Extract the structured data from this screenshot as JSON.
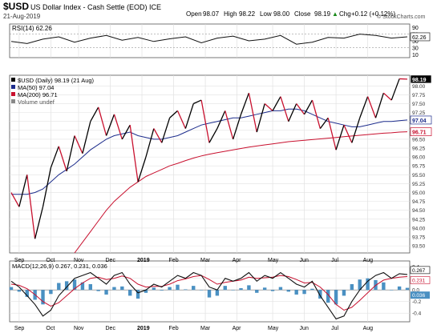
{
  "header": {
    "symbol": "$USD",
    "name": "US Dollar Index - Cash Settle (EOD) ICE",
    "date": "21-Aug-2019",
    "watermark": "© StockCharts.com",
    "quote": {
      "open_label": "Open",
      "open": "98.07",
      "high_label": "High",
      "high": "98.22",
      "low_label": "Low",
      "low": "98.00",
      "close_label": "Close",
      "close": "98.19",
      "chg_label": "Chg",
      "chg": "+0.12 (+0.12%)",
      "up_glyph": "▲"
    }
  },
  "chart_data": [
    {
      "type": "line",
      "panel": "RSI",
      "legend": "RSI(14) 62.26",
      "last_label": "62.26",
      "ylim": [
        0,
        100
      ],
      "y_ticks": [
        90,
        70,
        50,
        30,
        10
      ],
      "y_tick_labels": [
        "90",
        "70",
        "50",
        "30",
        "10"
      ],
      "x_index": [
        0,
        4,
        8,
        12,
        16,
        20,
        24,
        28,
        32,
        36,
        40,
        44,
        48,
        52,
        56,
        60,
        64,
        68,
        72,
        76,
        80,
        84,
        88,
        92,
        96,
        100
      ],
      "values": [
        48,
        42,
        55,
        62,
        46,
        58,
        66,
        52,
        60,
        48,
        56,
        62,
        44,
        58,
        64,
        50,
        55,
        66,
        40,
        46,
        60,
        58,
        70,
        66,
        58,
        62
      ]
    },
    {
      "type": "line",
      "panel": "price",
      "ylim": [
        93.3,
        98.3
      ],
      "y_ticks": [
        93.5,
        93.75,
        94.0,
        94.25,
        94.5,
        94.75,
        95.0,
        95.25,
        95.5,
        95.75,
        96.0,
        96.25,
        96.5,
        96.75,
        97.0,
        97.25,
        97.5,
        97.75,
        98.0
      ],
      "y_tick_labels": [
        "93.50",
        "93.75",
        "94.00",
        "94.25",
        "94.50",
        "94.75",
        "95.00",
        "95.25",
        "95.50",
        "95.75",
        "96.00",
        "96.25",
        "96.50",
        "96.75",
        "97.00",
        "97.25",
        "97.50",
        "97.75",
        "98.00"
      ],
      "legend": [
        {
          "label": "$USD (Daily) 98.19 (21 Aug)",
          "color": "#000000"
        },
        {
          "label": "MA(50) 97.04",
          "color": "#1c2c8c"
        },
        {
          "label": "MA(200) 96.71",
          "color": "#c8102e"
        },
        {
          "label": "Volume undef",
          "color": "#888888"
        }
      ],
      "last_labels": {
        "close": "98.19",
        "ma50": "97.04",
        "ma200": "96.71"
      },
      "x_index": [
        0,
        2,
        4,
        6,
        8,
        10,
        12,
        14,
        16,
        18,
        20,
        22,
        24,
        26,
        28,
        30,
        32,
        34,
        36,
        38,
        40,
        42,
        44,
        46,
        48,
        50,
        52,
        54,
        56,
        58,
        60,
        62,
        64,
        66,
        68,
        70,
        72,
        74,
        76,
        78,
        80,
        82,
        84,
        86,
        88,
        90,
        92,
        94,
        96,
        98,
        100
      ],
      "close": [
        95.0,
        94.6,
        95.5,
        93.7,
        94.6,
        95.7,
        96.3,
        95.6,
        96.6,
        96.1,
        97.0,
        97.4,
        96.6,
        97.2,
        96.5,
        96.9,
        95.3,
        96.0,
        96.8,
        96.4,
        97.1,
        97.3,
        96.8,
        97.5,
        97.6,
        96.4,
        96.8,
        97.3,
        96.5,
        97.2,
        97.8,
        96.7,
        97.5,
        97.3,
        97.7,
        97.0,
        97.5,
        97.2,
        97.6,
        96.8,
        97.1,
        96.2,
        96.9,
        96.4,
        97.1,
        97.7,
        97.1,
        97.8,
        97.6,
        98.2,
        98.19
      ],
      "ma50": [
        94.95,
        94.95,
        94.95,
        95.0,
        95.1,
        95.3,
        95.5,
        95.65,
        95.8,
        96.0,
        96.2,
        96.35,
        96.5,
        96.6,
        96.65,
        96.7,
        96.6,
        96.55,
        96.5,
        96.5,
        96.55,
        96.6,
        96.7,
        96.8,
        96.9,
        96.95,
        97.0,
        97.05,
        97.1,
        97.1,
        97.15,
        97.2,
        97.25,
        97.3,
        97.3,
        97.35,
        97.35,
        97.3,
        97.2,
        97.1,
        97.0,
        96.95,
        96.9,
        96.85,
        96.85,
        96.9,
        96.95,
        97.0,
        97.0,
        97.02,
        97.04
      ],
      "ma200": [
        null,
        null,
        null,
        null,
        null,
        null,
        null,
        null,
        93.3,
        93.6,
        93.9,
        94.2,
        94.5,
        94.75,
        94.95,
        95.15,
        95.3,
        95.45,
        95.55,
        95.65,
        95.75,
        95.82,
        95.9,
        95.97,
        96.03,
        96.08,
        96.12,
        96.16,
        96.2,
        96.24,
        96.28,
        96.31,
        96.34,
        96.37,
        96.4,
        96.43,
        96.45,
        96.47,
        96.49,
        96.51,
        96.53,
        96.55,
        96.57,
        96.59,
        96.61,
        96.63,
        96.65,
        96.67,
        96.68,
        96.7,
        96.71
      ]
    },
    {
      "type": "line",
      "panel": "MACD",
      "legend": [
        {
          "label": "MACD(12,26,9) 0.267, 0.231, 0.036",
          "color": "#000000"
        }
      ],
      "last_labels": {
        "macd": "0.267",
        "signal": "0.231",
        "hist": "0.036"
      },
      "ylim": [
        -0.55,
        0.5
      ],
      "y_ticks": [
        0.4,
        0.2,
        0.0,
        -0.2,
        -0.4
      ],
      "y_tick_labels": [
        "0.4",
        "0.2",
        "0.0",
        "-0.2",
        "-0.4"
      ],
      "x_index": [
        0,
        2,
        4,
        6,
        8,
        10,
        12,
        14,
        16,
        18,
        20,
        22,
        24,
        26,
        28,
        30,
        32,
        34,
        36,
        38,
        40,
        42,
        44,
        46,
        48,
        50,
        52,
        54,
        56,
        58,
        60,
        62,
        64,
        66,
        68,
        70,
        72,
        74,
        76,
        78,
        80,
        82,
        84,
        86,
        88,
        90,
        92,
        94,
        96,
        98,
        100
      ],
      "macd": [
        0.15,
        0.05,
        -0.1,
        -0.25,
        -0.45,
        -0.35,
        -0.1,
        0.05,
        0.2,
        0.25,
        0.3,
        0.2,
        0.1,
        0.25,
        0.3,
        0.1,
        -0.05,
        0.0,
        0.1,
        0.05,
        0.15,
        0.25,
        0.2,
        0.3,
        0.25,
        0.05,
        0.0,
        0.2,
        0.15,
        0.2,
        0.3,
        0.15,
        0.25,
        0.2,
        0.3,
        0.2,
        0.1,
        0.05,
        0.15,
        -0.1,
        -0.3,
        -0.5,
        -0.45,
        -0.2,
        0.0,
        0.15,
        0.25,
        0.3,
        0.2,
        0.28,
        0.267
      ],
      "signal": [
        0.1,
        0.08,
        0.02,
        -0.08,
        -0.2,
        -0.28,
        -0.22,
        -0.1,
        0.02,
        0.12,
        0.2,
        0.22,
        0.18,
        0.2,
        0.24,
        0.2,
        0.1,
        0.05,
        0.06,
        0.06,
        0.1,
        0.16,
        0.19,
        0.23,
        0.25,
        0.18,
        0.1,
        0.13,
        0.15,
        0.17,
        0.22,
        0.2,
        0.21,
        0.22,
        0.25,
        0.23,
        0.18,
        0.12,
        0.13,
        0.05,
        -0.08,
        -0.25,
        -0.35,
        -0.3,
        -0.18,
        -0.05,
        0.08,
        0.17,
        0.2,
        0.22,
        0.231
      ]
    }
  ],
  "x_axis": {
    "ticks_index": [
      2,
      10,
      17,
      25,
      33,
      41,
      49,
      57,
      66,
      74,
      82,
      90
    ],
    "labels": [
      "Sep",
      "Oct",
      "Nov",
      "Dec",
      "2019",
      "Feb",
      "Mar",
      "Apr",
      "May",
      "Jun",
      "Jul",
      "Aug"
    ]
  }
}
